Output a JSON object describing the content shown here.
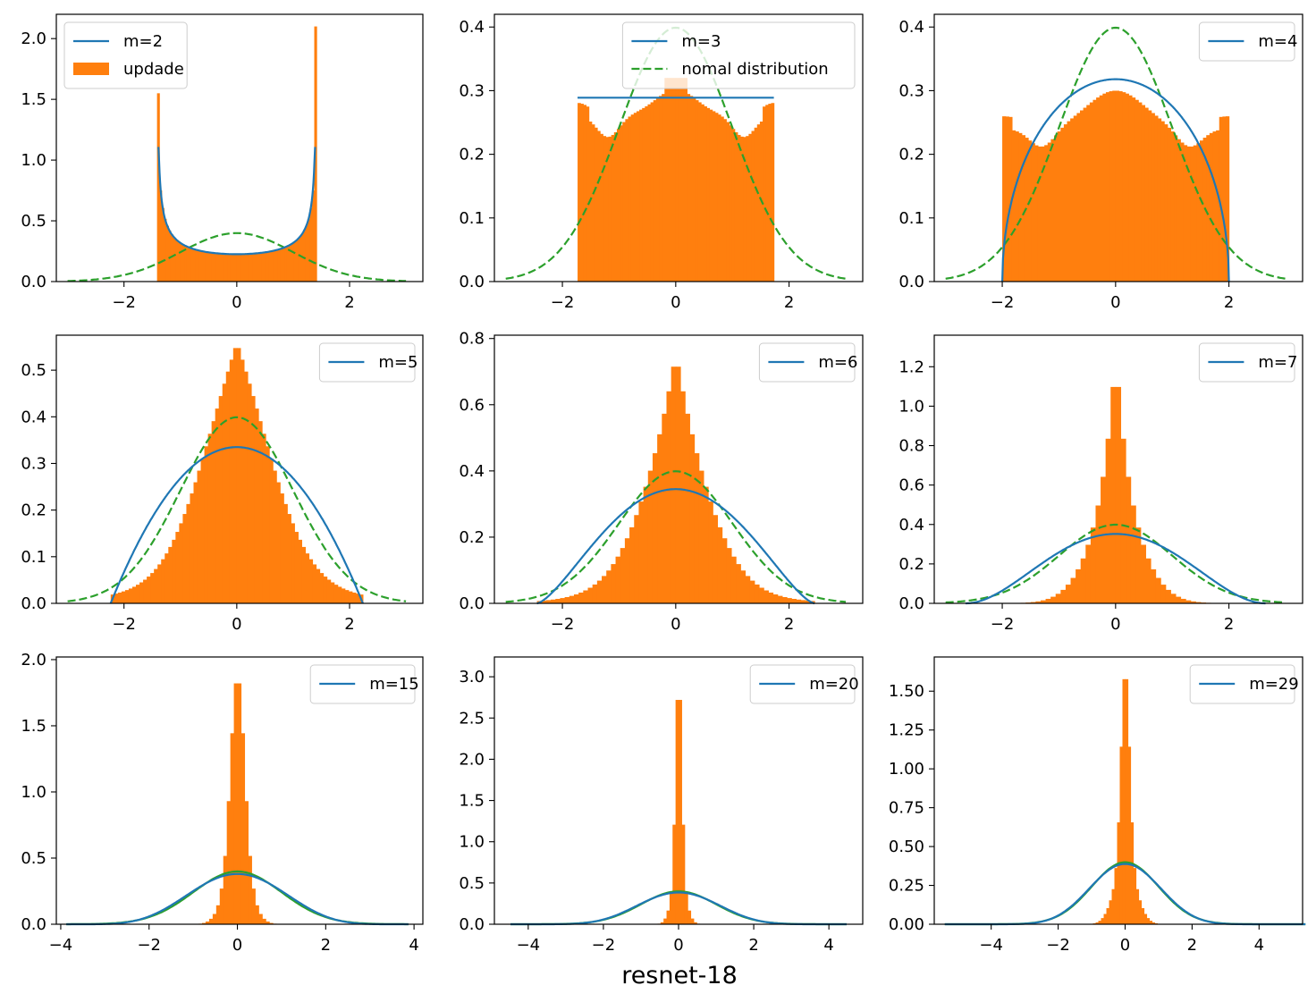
{
  "figure": {
    "caption": "resnet-18",
    "colors": {
      "fit": "#1f77b4",
      "hist": "#ff7f0e",
      "normal": "#2ca02c",
      "axis": "#000000",
      "background": "#ffffff"
    }
  },
  "chart_data": [
    {
      "type": "histogram",
      "m": 2,
      "legend": [
        "m=2",
        "updade"
      ],
      "legend_loc": "upper-left",
      "xlim": [
        -3.2,
        3.3
      ],
      "ylim": [
        0,
        2.2
      ],
      "xticks": [
        -2,
        0,
        2
      ],
      "yticks": [
        0.0,
        0.5,
        1.0,
        1.5,
        2.0
      ],
      "ytick_labels": [
        "0.0",
        "0.5",
        "1.0",
        "1.5",
        "2.0"
      ],
      "fit_support": [
        -1.4142,
        1.4142
      ],
      "fit_amplitude": 1.1,
      "normal_range": [
        -3,
        3
      ]
    },
    {
      "type": "histogram",
      "m": 3,
      "legend": [
        "m=3",
        "nomal distribution"
      ],
      "legend_loc": "upper-right",
      "xlim": [
        -3.2,
        3.3
      ],
      "ylim": [
        0,
        0.42
      ],
      "xticks": [
        -2,
        0,
        2
      ],
      "yticks": [
        0.0,
        0.1,
        0.2,
        0.3,
        0.4
      ],
      "ytick_labels": [
        "0.0",
        "0.1",
        "0.2",
        "0.3",
        "0.4"
      ],
      "fit_support": [
        -1.732,
        1.732
      ],
      "fit_amplitude": 0.289,
      "normal_range": [
        -3,
        3
      ]
    },
    {
      "type": "histogram",
      "m": 4,
      "legend": [
        "m=4"
      ],
      "legend_loc": "upper-right",
      "xlim": [
        -3.2,
        3.3
      ],
      "ylim": [
        0,
        0.42
      ],
      "xticks": [
        -2,
        0,
        2
      ],
      "yticks": [
        0.0,
        0.1,
        0.2,
        0.3,
        0.4
      ],
      "ytick_labels": [
        "0.0",
        "0.1",
        "0.2",
        "0.3",
        "0.4"
      ],
      "fit_support": [
        -2.0,
        2.0
      ],
      "fit_amplitude": 0.318,
      "normal_range": [
        -3,
        3
      ]
    },
    {
      "type": "histogram",
      "m": 5,
      "legend": [
        "m=5"
      ],
      "legend_loc": "upper-right",
      "xlim": [
        -3.2,
        3.3
      ],
      "ylim": [
        0,
        0.575
      ],
      "xticks": [
        -2,
        0,
        2
      ],
      "yticks": [
        0.0,
        0.1,
        0.2,
        0.3,
        0.4,
        0.5
      ],
      "ytick_labels": [
        "0.0",
        "0.1",
        "0.2",
        "0.3",
        "0.4",
        "0.5"
      ],
      "fit_support": [
        -2.236,
        2.236
      ],
      "fit_amplitude": 0.335,
      "normal_range": [
        -3,
        3
      ]
    },
    {
      "type": "histogram",
      "m": 6,
      "legend": [
        "m=6"
      ],
      "legend_loc": "upper-right",
      "xlim": [
        -3.2,
        3.3
      ],
      "ylim": [
        0,
        0.81
      ],
      "xticks": [
        -2,
        0,
        2
      ],
      "yticks": [
        0.0,
        0.2,
        0.4,
        0.6,
        0.8
      ],
      "ytick_labels": [
        "0.0",
        "0.2",
        "0.4",
        "0.6",
        "0.8"
      ],
      "fit_support": [
        -2.449,
        2.449
      ],
      "fit_amplitude": 0.345,
      "normal_range": [
        -3,
        3
      ]
    },
    {
      "type": "histogram",
      "m": 7,
      "legend": [
        "m=7"
      ],
      "legend_loc": "upper-right",
      "xlim": [
        -3.2,
        3.3
      ],
      "ylim": [
        0,
        1.36
      ],
      "xticks": [
        -2,
        0,
        2
      ],
      "yticks": [
        0.0,
        0.2,
        0.4,
        0.6,
        0.8,
        1.0,
        1.2
      ],
      "ytick_labels": [
        "0.0",
        "0.2",
        "0.4",
        "0.6",
        "0.8",
        "1.0",
        "1.2"
      ],
      "fit_support": [
        -2.646,
        2.646
      ],
      "fit_amplitude": 0.352,
      "normal_range": [
        -3,
        3
      ]
    },
    {
      "type": "histogram",
      "m": 15,
      "legend": [
        "m=15"
      ],
      "legend_loc": "upper-right",
      "xlim": [
        -4.1,
        4.2
      ],
      "ylim": [
        0,
        2.02
      ],
      "xticks": [
        -4,
        -2,
        0,
        2,
        4
      ],
      "yticks": [
        0.0,
        0.5,
        1.0,
        1.5,
        2.0
      ],
      "ytick_labels": [
        "0.0",
        "0.5",
        "1.0",
        "1.5",
        "2.0"
      ],
      "fit_support": [
        -3.873,
        3.873
      ],
      "fit_amplitude": 0.38,
      "normal_range": [
        -3.873,
        3.873
      ]
    },
    {
      "type": "histogram",
      "m": 20,
      "legend": [
        "m=20"
      ],
      "legend_loc": "upper-right",
      "xlim": [
        -4.9,
        4.9
      ],
      "ylim": [
        0,
        3.24
      ],
      "xticks": [
        -4,
        -2,
        0,
        2,
        4
      ],
      "yticks": [
        0.0,
        0.5,
        1.0,
        1.5,
        2.0,
        2.5,
        3.0
      ],
      "ytick_labels": [
        "0.0",
        "0.5",
        "1.0",
        "1.5",
        "2.0",
        "2.5",
        "3.0"
      ],
      "fit_support": [
        -4.472,
        4.472
      ],
      "fit_amplitude": 0.385,
      "normal_range": [
        -4.472,
        4.472
      ]
    },
    {
      "type": "histogram",
      "m": 29,
      "legend": [
        "m=29"
      ],
      "legend_loc": "upper-right",
      "xlim": [
        -5.7,
        5.3
      ],
      "ylim": [
        0,
        1.72
      ],
      "xticks": [
        -4,
        -2,
        0,
        2,
        4
      ],
      "yticks": [
        0.0,
        0.25,
        0.5,
        0.75,
        1.0,
        1.25,
        1.5
      ],
      "ytick_labels": [
        "0.00",
        "0.25",
        "0.50",
        "0.75",
        "1.00",
        "1.25",
        "1.50"
      ],
      "fit_support": [
        -5.385,
        5.385
      ],
      "fit_amplitude": 0.388,
      "normal_range": [
        -5.385,
        5.385
      ]
    }
  ]
}
